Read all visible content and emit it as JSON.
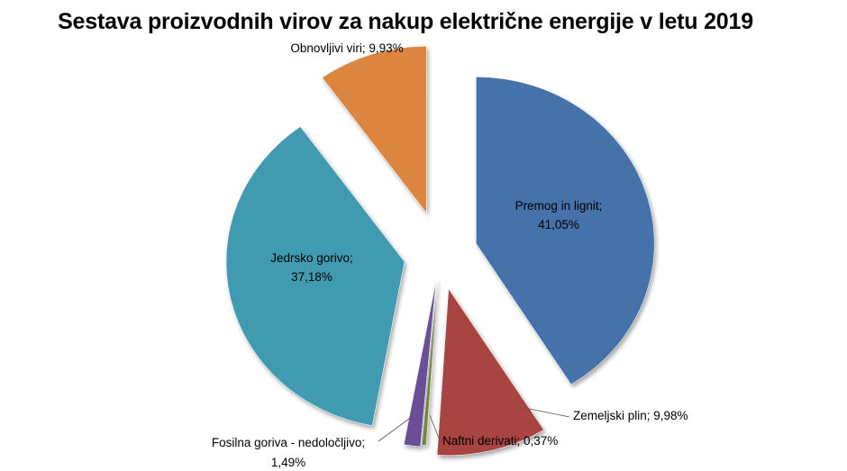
{
  "chart_data": {
    "type": "pie",
    "title": "Sestava proizvodnih virov za nakup električne energije v letu 2019",
    "slices": [
      {
        "name": "Premog in lignit",
        "value": 41.05,
        "label": "41,05%",
        "color": "#4472a8"
      },
      {
        "name": "Zemeljski plin",
        "value": 9.98,
        "label": "9,98%",
        "color": "#a84442"
      },
      {
        "name": "Naftni derivati",
        "value": 0.37,
        "label": "0,37%",
        "color": "#7d9a3c"
      },
      {
        "name": "Fosilna goriva - nedoločljivo",
        "value": 1.49,
        "label": "1,49%",
        "color": "#6a4f98"
      },
      {
        "name": "Jedrsko gorivo",
        "value": 37.18,
        "label": "37,18%",
        "color": "#3f9bb0"
      },
      {
        "name": "Obnovljivi viri",
        "value": 9.93,
        "label": "9,93%",
        "color": "#db8540"
      }
    ],
    "legend": "none",
    "start_angle": "top, clockwise",
    "exploded": true
  }
}
